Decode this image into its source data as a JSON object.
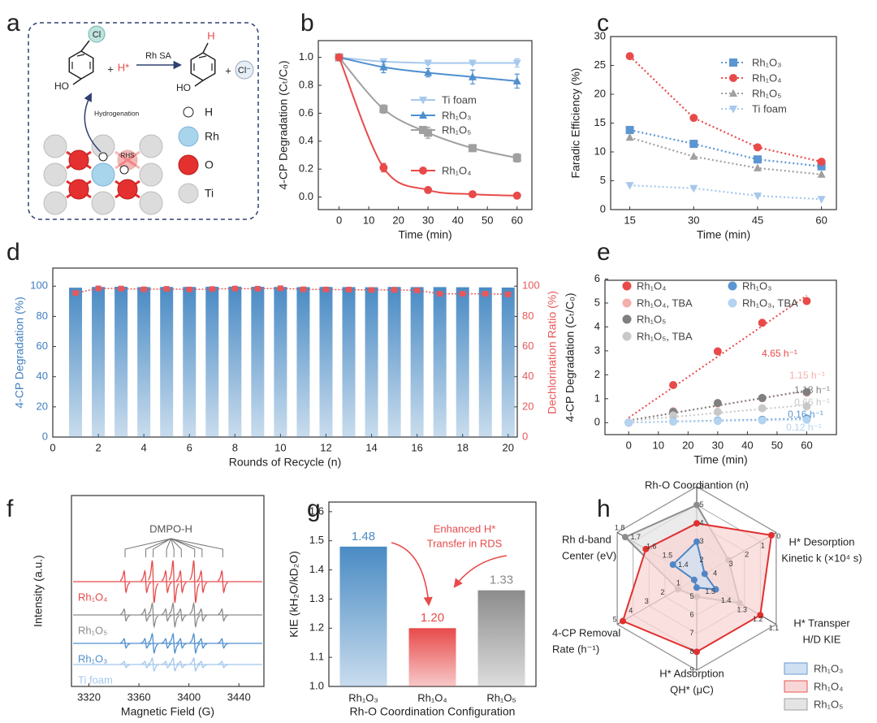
{
  "diagram": {
    "label": "a",
    "reactant": {
      "substituent": "Cl",
      "hydroxyl": "HO"
    },
    "plus": [
      "+",
      "+"
    ],
    "reagent": "H*",
    "arrow_label": "Rh SA",
    "product": {
      "substituent": "H",
      "hydroxyl": "HO"
    },
    "byproduct": "Cl⁻",
    "step_label": "Hydrogenation",
    "site_label": "RHS",
    "legend": [
      "H",
      "Rh",
      "O",
      "Ti"
    ]
  },
  "chart_data": [
    {
      "label": "b",
      "type": "line",
      "line_shape": "smooth",
      "xlabel": "Time (min)",
      "ylabel": "4-CP Degradation (Cₜ/C₀)",
      "x": [
        0,
        15,
        30,
        45,
        60
      ],
      "xlim": [
        -7,
        65
      ],
      "xticks": [
        0,
        10,
        20,
        30,
        40,
        50,
        60
      ],
      "ylim": [
        -0.09,
        1.12
      ],
      "yticks": [
        {
          "value": 0,
          "label": "0.0"
        },
        0.2,
        0.4,
        0.6,
        0.8,
        {
          "value": 1,
          "label": "1.0"
        }
      ],
      "series": [
        {
          "name": "Ti foam",
          "color": "#a6c8ec",
          "marker": "triangle-down",
          "values": [
            1.0,
            0.97,
            0.96,
            0.96,
            0.96
          ],
          "errors": [
            0.01,
            0.02,
            0.01,
            0.01,
            0.03
          ]
        },
        {
          "name": "Rh₁O₃",
          "color": "#4f8fcf",
          "marker": "triangle",
          "values": [
            1.0,
            0.93,
            0.89,
            0.86,
            0.83
          ],
          "errors": [
            0.01,
            0.04,
            0.03,
            0.05,
            0.05
          ]
        },
        {
          "name": "Rh₁O₅",
          "color": "#a0a0a0",
          "marker": "square",
          "values": [
            1.0,
            0.63,
            0.46,
            0.35,
            0.28
          ],
          "errors": [
            0.01,
            0.03,
            0.04,
            0.02,
            0.03
          ]
        },
        {
          "name": "Rh₁O₄",
          "color": "#e84a4a",
          "marker": "circle",
          "values": [
            1.0,
            0.21,
            0.05,
            0.02,
            0.01
          ],
          "errors": [
            0.01,
            0.03,
            0.01,
            0.01,
            0.01
          ]
        }
      ]
    },
    {
      "label": "c",
      "type": "line",
      "line_style": "dotted",
      "xlabel": "Time (min)",
      "ylabel": "Faradic Efficiency (%)",
      "x": [
        15,
        30,
        45,
        60
      ],
      "xlim": [
        10.5,
        63.5
      ],
      "xticks": [
        15,
        30,
        45,
        60
      ],
      "ylim": [
        0,
        30
      ],
      "yticks": [
        0,
        5,
        10,
        15,
        20,
        25,
        30
      ],
      "series": [
        {
          "name": "Rh₁O₃",
          "color": "#5b95d2",
          "marker": "square",
          "values": [
            13.8,
            11.4,
            8.7,
            7.5
          ]
        },
        {
          "name": "Rh₁O₄",
          "color": "#e84a4a",
          "marker": "circle",
          "values": [
            26.6,
            15.9,
            10.8,
            8.3
          ]
        },
        {
          "name": "Rh₁O₅",
          "color": "#a0a0a0",
          "marker": "triangle",
          "values": [
            12.5,
            9.2,
            7.2,
            6.1
          ]
        },
        {
          "name": "Ti foam",
          "color": "#a6c8ec",
          "marker": "triangle-down",
          "values": [
            4.2,
            3.7,
            2.4,
            1.8
          ]
        }
      ]
    },
    {
      "label": "d",
      "type": "bar-line",
      "xlabel": "Rounds of Recycle (n)",
      "ylabel": "4-CP Degradation (%)",
      "y2label": "Dechlorination Ratio (%)",
      "x": [
        1,
        2,
        3,
        4,
        5,
        6,
        7,
        8,
        9,
        10,
        11,
        12,
        13,
        14,
        15,
        16,
        17,
        18,
        19,
        20
      ],
      "xlim": [
        0,
        20.4
      ],
      "xticks": [
        0,
        2,
        4,
        6,
        8,
        10,
        12,
        14,
        16,
        18,
        20
      ],
      "ylim": [
        0,
        112
      ],
      "yticks": [
        0,
        20,
        40,
        60,
        80,
        100
      ],
      "y2lim": [
        0,
        112
      ],
      "y2ticks": [
        0,
        20,
        40,
        60,
        80,
        100
      ],
      "series": [
        {
          "color": "#4a8bc4",
          "values": [
            99,
            99.5,
            99.6,
            99.4,
            99.5,
            99.5,
            99.6,
            99.7,
            99.6,
            99.5,
            99.4,
            99.5,
            99.4,
            99.3,
            99.5,
            99.4,
            99.4,
            99.3,
            99.2,
            99.1
          ]
        },
        {
          "axis": "y2",
          "color": "#e8585a",
          "marker": "square",
          "values": [
            95.5,
            98.5,
            98.4,
            97.9,
            98.2,
            97.8,
            98.1,
            98.4,
            98.3,
            98.6,
            97.9,
            97.8,
            97.7,
            97.5,
            97.6,
            97.2,
            95,
            95,
            95,
            94.6
          ]
        }
      ]
    },
    {
      "label": "e",
      "type": "scatter",
      "fit": "linear",
      "xlabel": "Time (min)",
      "ylabel": "4-CP Degradation (Cₜ/C₀)",
      "x": [
        0,
        15,
        30,
        45,
        60
      ],
      "xlim": [
        -8,
        70
      ],
      "xticks": [
        0,
        10,
        20,
        30,
        40,
        50,
        60
      ],
      "ylim": [
        -0.5,
        5.95
      ],
      "yticks": [
        0,
        1,
        2,
        3,
        4,
        5,
        6
      ],
      "series": [
        {
          "name": "Rh₁O₄",
          "color": "#e84a4a",
          "values": [
            0,
            1.57,
            2.98,
            4.17,
            5.08
          ],
          "rate_label": "4.65 h⁻¹"
        },
        {
          "name": "Rh₁O₄, TBA",
          "color": "#f4aeab",
          "values": [
            0,
            0.48,
            0.8,
            1.02,
            1.25
          ],
          "rate_label": "1.15 h⁻¹"
        },
        {
          "name": "Rh₁O₅",
          "color": "#7f7f7f",
          "values": [
            0,
            0.45,
            0.82,
            1.03,
            1.28
          ],
          "rate_label": "1.18 h⁻¹"
        },
        {
          "name": "Rh₁O₅, TBA",
          "color": "#c8c8c8",
          "values": [
            0,
            0.3,
            0.45,
            0.6,
            0.68
          ],
          "rate_label": "0.66 h⁻¹"
        },
        {
          "name": "Rh₁O₃",
          "color": "#5b95d2",
          "values": [
            0,
            0.05,
            0.09,
            0.12,
            0.17
          ],
          "rate_label": "0.16 h⁻¹"
        },
        {
          "name": "Rh₁O₃, TBA",
          "color": "#b4d3ef",
          "values": [
            0,
            0.04,
            0.07,
            0.09,
            0.12
          ],
          "rate_label": "0.12 h⁻¹"
        }
      ]
    },
    {
      "label": "f",
      "type": "epr",
      "xlabel": "Magnetic Field (G)",
      "ylabel": "Intensity (a.u.)",
      "annotation": "DMPO-H",
      "x": [
        3348.9,
        3365.5,
        3371.4,
        3382.1,
        3388,
        3393.9,
        3404.6,
        3410.5,
        3427.1
      ],
      "xlim": [
        3306,
        3460
      ],
      "xticks": [
        3320,
        3360,
        3400,
        3440
      ],
      "series": [
        {
          "name": "Rh₁O₄",
          "color": "#e84a4a",
          "values": [
            0.5,
            0.5,
            1,
            0.5,
            1,
            0.5,
            1,
            0.5,
            0.5
          ]
        },
        {
          "name": "Rh₁O₅",
          "color": "#8c8c8c",
          "values": [
            0.28,
            0.28,
            0.55,
            0.28,
            0.55,
            0.28,
            0.55,
            0.28,
            0.28
          ]
        },
        {
          "name": "Rh₁O₃",
          "color": "#4f8fcf",
          "values": [
            0.22,
            0.22,
            0.45,
            0.22,
            0.45,
            0.22,
            0.45,
            0.22,
            0.22
          ]
        },
        {
          "name": "Ti foam",
          "color": "#a6c8ec",
          "values": [
            0.15,
            0.15,
            0.3,
            0.15,
            0.3,
            0.15,
            0.3,
            0.15,
            0.15
          ]
        }
      ]
    },
    {
      "label": "g",
      "type": "bar",
      "xlabel": "Rh-O Coordination Configuration",
      "ylabel": "KIE (kH₂O/kD₂O)",
      "categories": [
        "Rh₁O₃",
        "Rh₁O₄",
        "Rh₁O₅"
      ],
      "values": [
        1.48,
        1.2,
        1.33
      ],
      "value_labels": [
        "1.48",
        "1.20",
        "1.33"
      ],
      "colors": [
        "#4a8bc4",
        "#e84a4a",
        "#8c8c8c"
      ],
      "ylim": [
        1.0,
        1.633
      ],
      "yticks": [
        {
          "value": 1,
          "label": "1.0"
        },
        1.1,
        1.2,
        1.3,
        1.4,
        1.5,
        1.6
      ],
      "annotation": [
        "Enhanced H*",
        "Transfer in RDS"
      ]
    },
    {
      "label": "h",
      "type": "radar",
      "axes": [
        {
          "label": [
            "Rh-O Coordiantion (n)"
          ],
          "ticks": [
            1,
            2,
            3,
            4,
            5,
            6
          ]
        },
        {
          "label": [
            "H* Desorption",
            "Kinetic k (×10⁴ s)"
          ],
          "ticks": [
            5,
            4,
            3,
            2,
            1,
            0
          ]
        },
        {
          "label": [
            "H* Transper",
            "H/D KIE"
          ],
          "ticks": [
            1.6,
            1.5,
            1.4,
            1.3,
            1.2,
            1.1
          ]
        },
        {
          "label": [
            "H* Adsorption",
            "QH* (μC)"
          ],
          "ticks": [
            4,
            5,
            6,
            7,
            8,
            9
          ]
        },
        {
          "label": [
            "4-CP Removal",
            "Rate (h⁻¹)"
          ],
          "ticks": [
            0,
            1,
            2,
            3,
            4,
            5
          ]
        },
        {
          "label": [
            "Rh d-band",
            "Center (eV)"
          ],
          "ticks": [
            1.3,
            1.4,
            1.5,
            1.6,
            1.7,
            1.8
          ]
        }
      ],
      "series": [
        {
          "name": "Rh₁O₃",
          "color": "#4f86c6",
          "fill": "#cfe0f3",
          "values": [
            3,
            4.5,
            1.48,
            4.5,
            0.16,
            1.45
          ]
        },
        {
          "name": "Rh₁O₄",
          "color": "#e03030",
          "fill": "#f9d6d6",
          "values": [
            4,
            0.3,
            1.2,
            8,
            4.65,
            1.62
          ]
        },
        {
          "name": "Rh₁O₅",
          "color": "#8c8c8c",
          "fill": "#e4e4e4",
          "values": [
            5,
            3,
            1.33,
            5,
            1.18,
            1.75
          ]
        }
      ]
    }
  ]
}
